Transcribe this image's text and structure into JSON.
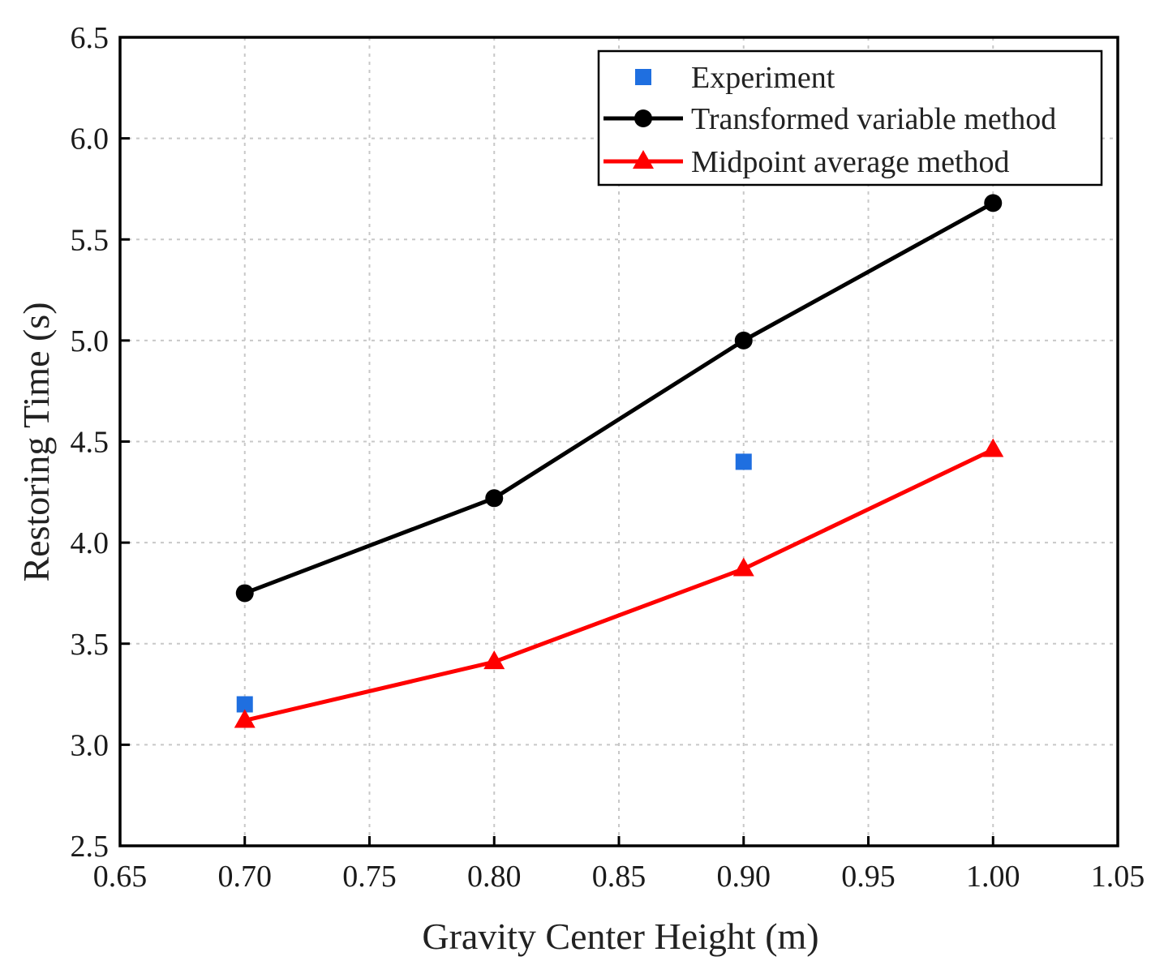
{
  "chart_data": {
    "type": "line",
    "title": "",
    "xlabel": "Gravity Center Height (m)",
    "ylabel": "Restoring Time (s)",
    "xlim": [
      0.65,
      1.05
    ],
    "ylim": [
      2.5,
      6.5
    ],
    "xticks": [
      "0.65",
      "0.70",
      "0.75",
      "0.80",
      "0.85",
      "0.90",
      "0.95",
      "1.00",
      "1.05"
    ],
    "yticks": [
      "2.5",
      "3.0",
      "3.5",
      "4.0",
      "4.5",
      "5.0",
      "5.5",
      "6.0",
      "6.5"
    ],
    "grid": true,
    "legend_position": "top-right",
    "series": [
      {
        "name": "Experiment",
        "style": "markers",
        "marker": "square",
        "color": "#1f6fe0",
        "x": [
          0.7,
          0.9
        ],
        "y": [
          3.2,
          4.4
        ]
      },
      {
        "name": "Transformed variable method",
        "style": "line-markers",
        "marker": "circle",
        "color": "#000000",
        "x": [
          0.7,
          0.8,
          0.9,
          1.0
        ],
        "y": [
          3.75,
          4.22,
          5.0,
          5.68
        ]
      },
      {
        "name": "Midpoint average method",
        "style": "line-markers",
        "marker": "triangle",
        "color": "#ff0000",
        "x": [
          0.7,
          0.8,
          0.9,
          1.0
        ],
        "y": [
          3.12,
          3.41,
          3.87,
          4.46
        ]
      }
    ]
  }
}
